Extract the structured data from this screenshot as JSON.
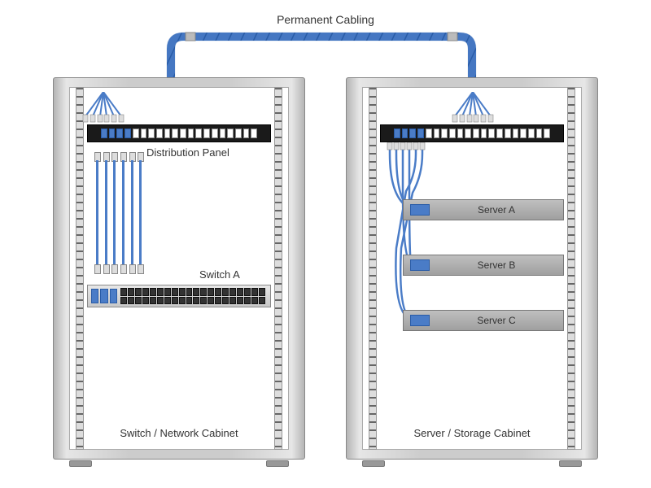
{
  "title": "Permanent Cabling",
  "cable_color": "#4a7cc7",
  "cable_stroke": "#2a5ca7",
  "panel_color": "#1a1a1a",
  "server_bg": "#afafaf",
  "text_color": "#333333",
  "left_cabinet": {
    "label": "Switch / Network Cabinet",
    "panel_label": "Distribution Panel",
    "switch_label": "Switch A",
    "panel_ports": 20,
    "panel_filled": 4,
    "patch_cables": 6,
    "switch_ports": 40
  },
  "right_cabinet": {
    "label": "Server / Storage Cabinet",
    "panel_ports": 20,
    "panel_filled": 4,
    "servers": [
      {
        "name": "Server A"
      },
      {
        "name": "Server B"
      },
      {
        "name": "Server C"
      }
    ]
  },
  "trunk_fibers": 6
}
